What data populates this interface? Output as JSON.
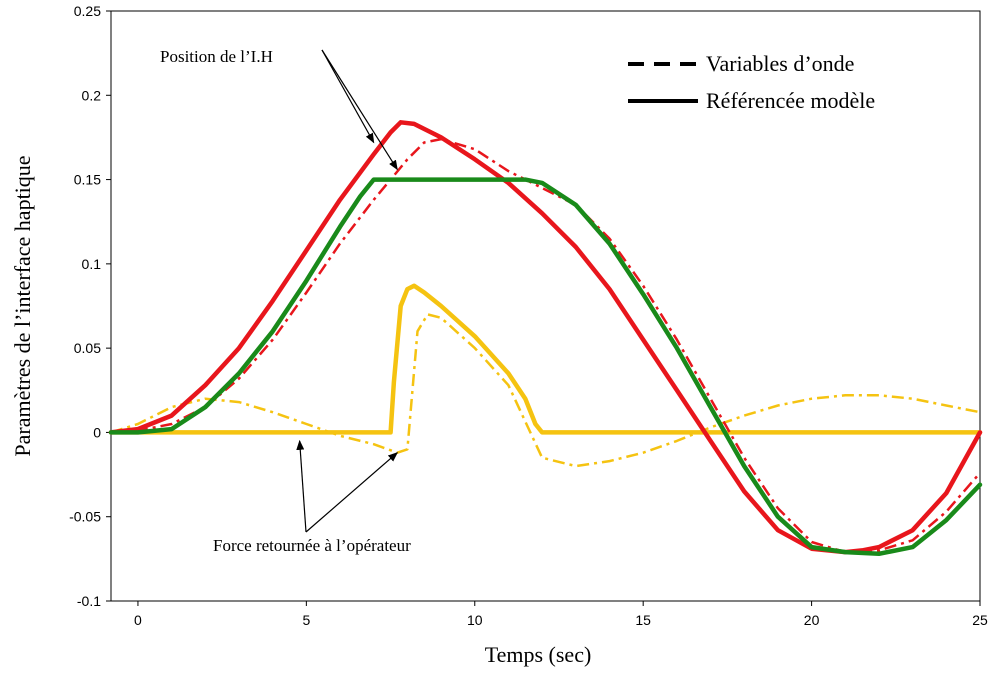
{
  "chart_data": {
    "type": "line",
    "xlabel": "Temps (sec)",
    "ylabel": "Paramètres de l’interface haptique",
    "xlim": [
      -0.8,
      25
    ],
    "ylim": [
      -0.1,
      0.25
    ],
    "xticks": [
      0,
      5,
      10,
      15,
      20,
      25
    ],
    "yticks": [
      -0.1,
      -0.05,
      0,
      0.05,
      0.1,
      0.15,
      0.2,
      0.25
    ],
    "ytick_labels": [
      "-0.1",
      "-0.05",
      "0",
      "0.05",
      "0.1",
      "0.15",
      "0.2",
      "0.25"
    ],
    "grid": false,
    "legend_position": "top-right",
    "legend": [
      {
        "label": "Variables d’onde",
        "style": "dashed"
      },
      {
        "label": "Référencée modèle",
        "style": "solid"
      }
    ],
    "annotations": [
      {
        "text": "Position de l’I.H",
        "targets": [
          [
            7.0,
            0.172
          ],
          [
            7.7,
            0.156
          ]
        ],
        "anchor": [
          5.7,
          0.227
        ]
      },
      {
        "text": "Force retournée à l’opérateur",
        "targets": [
          [
            4.8,
            -0.005
          ],
          [
            7.7,
            -0.012
          ]
        ],
        "anchor": [
          6.6,
          -0.054
        ]
      }
    ],
    "series": [
      {
        "color": "#e8161c",
        "style": "solid",
        "x": [
          -0.8,
          0,
          1,
          2,
          3,
          4,
          5,
          6,
          7,
          7.5,
          7.8,
          8.2,
          9,
          10,
          11,
          12,
          13,
          14,
          15,
          16,
          17,
          18,
          19,
          20,
          21,
          21.5,
          22,
          23,
          24,
          25
        ],
        "y": [
          0,
          0.002,
          0.01,
          0.028,
          0.05,
          0.078,
          0.108,
          0.138,
          0.165,
          0.178,
          0.184,
          0.183,
          0.175,
          0.162,
          0.148,
          0.13,
          0.11,
          0.085,
          0.055,
          0.025,
          -0.005,
          -0.035,
          -0.058,
          -0.069,
          -0.071,
          -0.07,
          -0.068,
          -0.058,
          -0.036,
          0
        ]
      },
      {
        "color": "#e8161c",
        "style": "dashdot",
        "x": [
          -0.8,
          0,
          1,
          2,
          3,
          4,
          5,
          6,
          7,
          7.5,
          8,
          8.5,
          9,
          10,
          11,
          12,
          13,
          14,
          15,
          16,
          17,
          18,
          19,
          20,
          21,
          22,
          23,
          24,
          25
        ],
        "y": [
          0,
          0.001,
          0.005,
          0.015,
          0.032,
          0.055,
          0.083,
          0.112,
          0.138,
          0.15,
          0.162,
          0.172,
          0.174,
          0.168,
          0.155,
          0.145,
          0.135,
          0.115,
          0.087,
          0.055,
          0.02,
          -0.015,
          -0.045,
          -0.065,
          -0.071,
          -0.07,
          -0.064,
          -0.047,
          -0.024
        ]
      },
      {
        "color": "#198a1a",
        "style": "solid",
        "x": [
          -0.8,
          0,
          1,
          2,
          3,
          4,
          5,
          6,
          6.6,
          7,
          8,
          9,
          10,
          11,
          11.5,
          12,
          13,
          14,
          15,
          16,
          17,
          18,
          19,
          20,
          21,
          22,
          23,
          24,
          25
        ],
        "y": [
          0,
          0,
          0.002,
          0.015,
          0.035,
          0.06,
          0.09,
          0.122,
          0.14,
          0.15,
          0.15,
          0.15,
          0.15,
          0.15,
          0.15,
          0.148,
          0.135,
          0.112,
          0.082,
          0.05,
          0.015,
          -0.02,
          -0.05,
          -0.068,
          -0.071,
          -0.072,
          -0.068,
          -0.052,
          -0.031
        ]
      },
      {
        "color": "#f5c311",
        "style": "solid",
        "x": [
          -0.8,
          0,
          2,
          4,
          6,
          7.5,
          7.6,
          7.8,
          8.0,
          8.2,
          8.5,
          9,
          10,
          11,
          11.5,
          11.8,
          12,
          14,
          16,
          18,
          20,
          22,
          24,
          25
        ],
        "y": [
          0,
          0,
          0,
          0,
          0,
          0,
          0.03,
          0.075,
          0.085,
          0.087,
          0.083,
          0.075,
          0.057,
          0.035,
          0.02,
          0.005,
          0,
          0,
          0,
          0,
          0,
          0,
          0,
          0
        ]
      },
      {
        "color": "#f5c311",
        "style": "dashdot",
        "x": [
          -0.8,
          0,
          1,
          2,
          3,
          4,
          5,
          6,
          7,
          7.7,
          8.0,
          8.3,
          8.6,
          9,
          10,
          11,
          12,
          13,
          14,
          15,
          16,
          17,
          18,
          19,
          20,
          21,
          22,
          23,
          24,
          25
        ],
        "y": [
          0,
          0.005,
          0.015,
          0.02,
          0.018,
          0.012,
          0.005,
          -0.002,
          -0.007,
          -0.012,
          -0.01,
          0.06,
          0.07,
          0.068,
          0.05,
          0.028,
          -0.015,
          -0.02,
          -0.017,
          -0.012,
          -0.005,
          0.003,
          0.01,
          0.016,
          0.02,
          0.022,
          0.022,
          0.02,
          0.016,
          0.012
        ]
      }
    ]
  }
}
